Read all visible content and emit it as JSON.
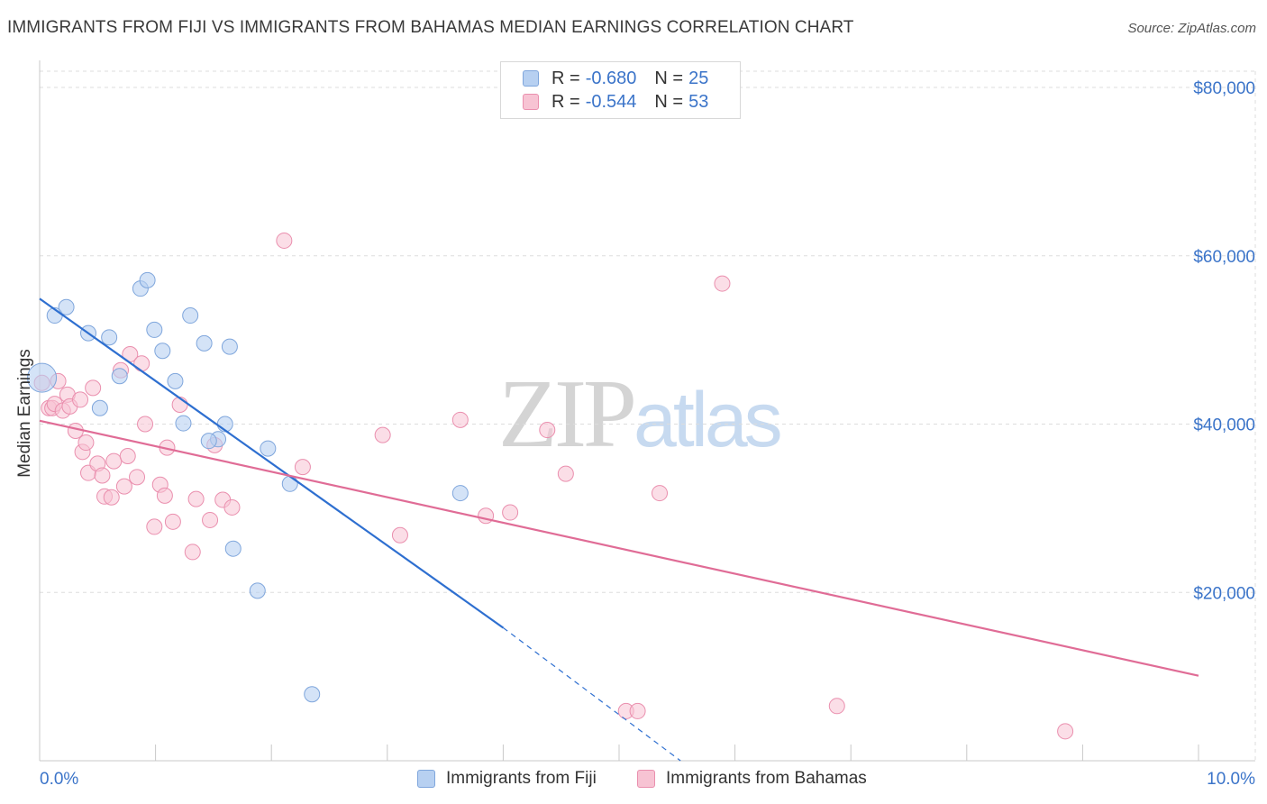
{
  "header": {
    "title": "IMMIGRANTS FROM FIJI VS IMMIGRANTS FROM BAHAMAS MEDIAN EARNINGS CORRELATION CHART",
    "source": "Source: ZipAtlas.com"
  },
  "watermark": {
    "zip": "ZIP",
    "atlas": "atlas"
  },
  "colors": {
    "fiji_fill": "#b7d0f1",
    "fiji_stroke": "#7fa6dc",
    "fiji_line": "#2e6fd0",
    "bahamas_fill": "#f7c3d3",
    "bahamas_stroke": "#ea8fae",
    "bahamas_line": "#e06c96",
    "tick_text": "#3b74c9",
    "grid": "#dddddd"
  },
  "legend_top": {
    "rows": [
      {
        "r_label": "R = ",
        "r_value": "-0.680",
        "n_label": "N = ",
        "n_value": "25"
      },
      {
        "r_label": "R = ",
        "r_value": "-0.544",
        "n_label": "N = ",
        "n_value": "53"
      }
    ]
  },
  "legend_bottom": {
    "items": [
      "Immigrants from Fiji",
      "Immigrants from Bahamas"
    ]
  },
  "chart_data": {
    "type": "scatter",
    "title": "IMMIGRANTS FROM FIJI VS IMMIGRANTS FROM BAHAMAS MEDIAN EARNINGS CORRELATION CHART",
    "xlabel": "",
    "ylabel": "Median Earnings",
    "xlim": [
      0,
      10
    ],
    "ylim": [
      0,
      80000
    ],
    "x_tick_labels": [
      "0.0%",
      "10.0%"
    ],
    "y_ticks": [
      20000,
      40000,
      60000,
      80000
    ],
    "y_tick_labels": [
      "$20,000",
      "$40,000",
      "$60,000",
      "$80,000"
    ],
    "grid": true,
    "legend_position": "top-center",
    "series": [
      {
        "name": "Immigrants from Fiji",
        "r": -0.68,
        "n": 25,
        "points": [
          [
            0.02,
            45500
          ],
          [
            0.13,
            52900
          ],
          [
            0.23,
            53900
          ],
          [
            0.42,
            50800
          ],
          [
            0.6,
            50300
          ],
          [
            0.69,
            45700
          ],
          [
            0.52,
            41900
          ],
          [
            0.87,
            56100
          ],
          [
            0.93,
            57100
          ],
          [
            0.99,
            51200
          ],
          [
            1.06,
            48700
          ],
          [
            1.17,
            45100
          ],
          [
            1.24,
            40100
          ],
          [
            1.3,
            52900
          ],
          [
            1.42,
            49600
          ],
          [
            1.6,
            40000
          ],
          [
            1.64,
            49200
          ],
          [
            1.67,
            25200
          ],
          [
            1.88,
            20200
          ],
          [
            1.97,
            37100
          ],
          [
            2.16,
            32900
          ],
          [
            2.35,
            7900
          ],
          [
            3.63,
            31800
          ],
          [
            1.54,
            38200
          ],
          [
            1.46,
            38000
          ]
        ],
        "trend": {
          "x_start": 0.0,
          "y_start": 54900,
          "x_solid_end": 4.0,
          "y_solid_end": 15800,
          "x_dash_end": 5.53,
          "y_dash_end": 0
        }
      },
      {
        "name": "Immigrants from Bahamas",
        "r": -0.544,
        "n": 53,
        "points": [
          [
            0.02,
            44900
          ],
          [
            0.08,
            41900
          ],
          [
            0.11,
            41900
          ],
          [
            0.13,
            42400
          ],
          [
            0.16,
            45100
          ],
          [
            0.2,
            41600
          ],
          [
            0.24,
            43500
          ],
          [
            0.26,
            42100
          ],
          [
            0.31,
            39200
          ],
          [
            0.35,
            42900
          ],
          [
            0.37,
            36700
          ],
          [
            0.4,
            37800
          ],
          [
            0.42,
            34200
          ],
          [
            0.46,
            44300
          ],
          [
            0.5,
            35300
          ],
          [
            0.54,
            33900
          ],
          [
            0.56,
            31400
          ],
          [
            0.62,
            31300
          ],
          [
            0.64,
            35600
          ],
          [
            0.7,
            46400
          ],
          [
            0.73,
            32600
          ],
          [
            0.76,
            36200
          ],
          [
            0.78,
            48300
          ],
          [
            0.84,
            33700
          ],
          [
            0.88,
            47200
          ],
          [
            0.91,
            40000
          ],
          [
            0.99,
            27800
          ],
          [
            1.04,
            32800
          ],
          [
            1.08,
            31500
          ],
          [
            1.1,
            37200
          ],
          [
            1.15,
            28400
          ],
          [
            1.21,
            42300
          ],
          [
            1.32,
            24800
          ],
          [
            1.35,
            31100
          ],
          [
            1.47,
            28600
          ],
          [
            1.51,
            37500
          ],
          [
            1.58,
            31000
          ],
          [
            1.66,
            30100
          ],
          [
            2.11,
            61800
          ],
          [
            2.27,
            34900
          ],
          [
            2.96,
            38700
          ],
          [
            3.11,
            26800
          ],
          [
            3.63,
            40500
          ],
          [
            3.85,
            29100
          ],
          [
            4.06,
            29500
          ],
          [
            4.38,
            39300
          ],
          [
            4.54,
            34100
          ],
          [
            5.06,
            5900
          ],
          [
            5.16,
            5900
          ],
          [
            5.35,
            31800
          ],
          [
            5.89,
            56700
          ],
          [
            6.88,
            6500
          ],
          [
            8.85,
            3500
          ]
        ],
        "trend": {
          "x_start": 0.0,
          "y_start": 40400,
          "x_end": 10.0,
          "y_end": 10100
        }
      }
    ]
  }
}
